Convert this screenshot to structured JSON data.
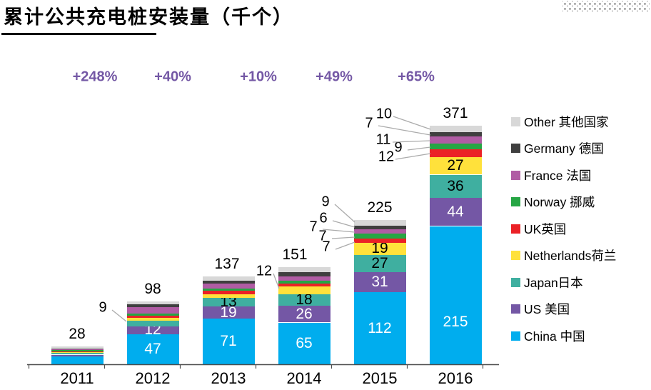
{
  "title": "累计公共充电桩安装量（千个）",
  "chart_data": {
    "type": "bar",
    "stacked": true,
    "title": "累计公共充电桩安装量（千个）",
    "categories": [
      "2011",
      "2012",
      "2013",
      "2014",
      "2015",
      "2016"
    ],
    "series": [
      {
        "key": "china",
        "label": "China 中国",
        "color": "#00ADEE",
        "values": [
          12,
          47,
          71,
          65,
          112,
          215
        ]
      },
      {
        "key": "us",
        "label": "US 美国",
        "color": "#7457A5",
        "values": [
          3,
          12,
          19,
          26,
          31,
          44
        ]
      },
      {
        "key": "japan",
        "label": "Japan日本",
        "color": "#3FAFA0",
        "values": [
          3,
          9,
          13,
          18,
          27,
          36
        ]
      },
      {
        "key": "netherlands",
        "label": "Netherlands荷兰",
        "color": "#FFE13B",
        "values": [
          1,
          4,
          6,
          12,
          19,
          27
        ]
      },
      {
        "key": "uk",
        "label": "UK英国",
        "color": "#EB2126",
        "values": [
          1,
          4,
          5,
          5,
          7,
          12
        ]
      },
      {
        "key": "norway",
        "label": "Norway 挪威",
        "color": "#26A644",
        "values": [
          2,
          3,
          4,
          4,
          7,
          9
        ]
      },
      {
        "key": "france",
        "label": "France 法国",
        "color": "#B05CA4",
        "values": [
          1,
          10,
          8,
          7,
          7,
          11
        ]
      },
      {
        "key": "germany",
        "label": "Germany 德国",
        "color": "#3F3F3F",
        "values": [
          2,
          4,
          4,
          6,
          6,
          7
        ]
      },
      {
        "key": "other",
        "label": "Other 其他国家",
        "color": "#D8D8D8",
        "values": [
          3,
          5,
          7,
          8,
          9,
          10
        ]
      }
    ],
    "totals": [
      28,
      98,
      137,
      151,
      225,
      371
    ],
    "growth_labels": [
      "+248%",
      "+40%",
      "+10%",
      "+49%",
      "+65%"
    ],
    "legend_order_top_to_bottom": [
      "other",
      "germany",
      "france",
      "norway",
      "uk",
      "netherlands",
      "japan",
      "us",
      "china"
    ],
    "legend_position": "right",
    "grid": false,
    "ylim": [
      0,
      400
    ],
    "accent_color": "#7458A5",
    "leader_line_color": "#ABABAB",
    "axis_color": "#4d4d4d"
  }
}
